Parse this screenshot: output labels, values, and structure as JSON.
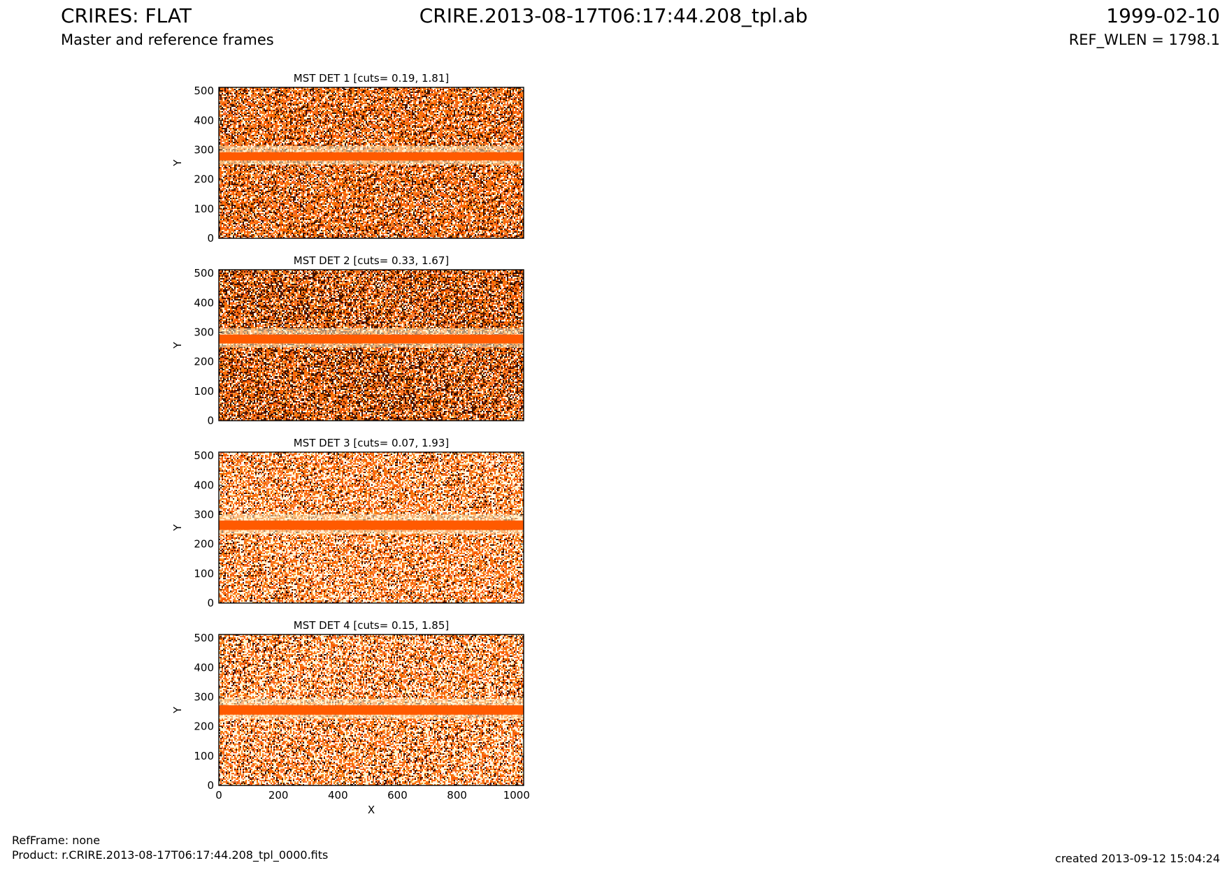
{
  "header": {
    "title_left": "CRIRES: FLAT",
    "subtitle_left": "Master and reference frames",
    "title_center": "CRIRE.2013-08-17T06:17:44.208_tpl.ab",
    "title_right": "1999-02-10",
    "subtitle_right": "REF_WLEN = 1798.1"
  },
  "footer": {
    "ref_frame": "RefFrame: none",
    "product": "Product: r.CRIRE.2013-08-17T06:17:44.208_tpl_0000.fits",
    "created": "created 2013-09-12 15:04:24"
  },
  "colors": {
    "band": "#ff5a00",
    "dark": "#3a1205",
    "pale": "#fff0c8",
    "mid": "#f07a30"
  },
  "chart_data": [
    {
      "type": "heatmap",
      "title": "MST DET 1 [cuts= 0.19, 1.81]",
      "xlabel": "",
      "ylabel": "Y",
      "xlim": [
        0,
        1024
      ],
      "ylim": [
        0,
        512
      ],
      "yticks": [
        0,
        100,
        200,
        300,
        400,
        500
      ],
      "band_y": [
        264,
        292
      ],
      "grid": false
    },
    {
      "type": "heatmap",
      "title": "MST DET 2 [cuts= 0.33, 1.67]",
      "xlabel": "",
      "ylabel": "Y",
      "xlim": [
        0,
        1024
      ],
      "ylim": [
        0,
        512
      ],
      "yticks": [
        0,
        100,
        200,
        300,
        400,
        500
      ],
      "band_y": [
        262,
        292
      ],
      "grid": false
    },
    {
      "type": "heatmap",
      "title": "MST DET 3 [cuts= 0.07, 1.93]",
      "xlabel": "",
      "ylabel": "Y",
      "xlim": [
        0,
        1024
      ],
      "ylim": [
        0,
        512
      ],
      "yticks": [
        0,
        100,
        200,
        300,
        400,
        500
      ],
      "band_y": [
        248,
        280
      ],
      "grid": false
    },
    {
      "type": "heatmap",
      "title": "MST DET 4 [cuts= 0.15, 1.85]",
      "xlabel": "X",
      "ylabel": "Y",
      "xlim": [
        0,
        1024
      ],
      "ylim": [
        0,
        512
      ],
      "xticks": [
        0,
        200,
        400,
        600,
        800,
        1000
      ],
      "yticks": [
        0,
        100,
        200,
        300,
        400,
        500
      ],
      "band_y": [
        240,
        272
      ],
      "grid": false
    }
  ]
}
